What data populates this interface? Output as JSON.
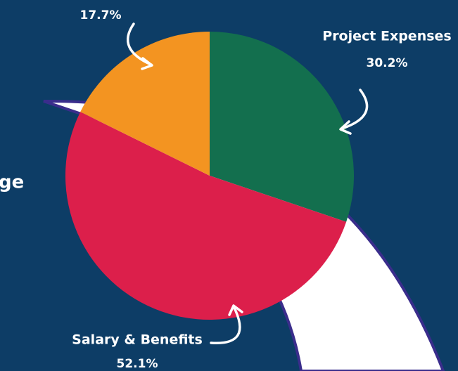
{
  "side_text": "ge",
  "chart_data": {
    "type": "pie",
    "categories": [
      "Project Expenses",
      "Salary & Benefits",
      null
    ],
    "values": [
      30.2,
      52.1,
      17.7
    ],
    "value_labels": [
      "30.2%",
      "52.1%",
      "17.7%"
    ],
    "colors": [
      "#136f4e",
      "#dc1f4b",
      "#f39421"
    ]
  }
}
